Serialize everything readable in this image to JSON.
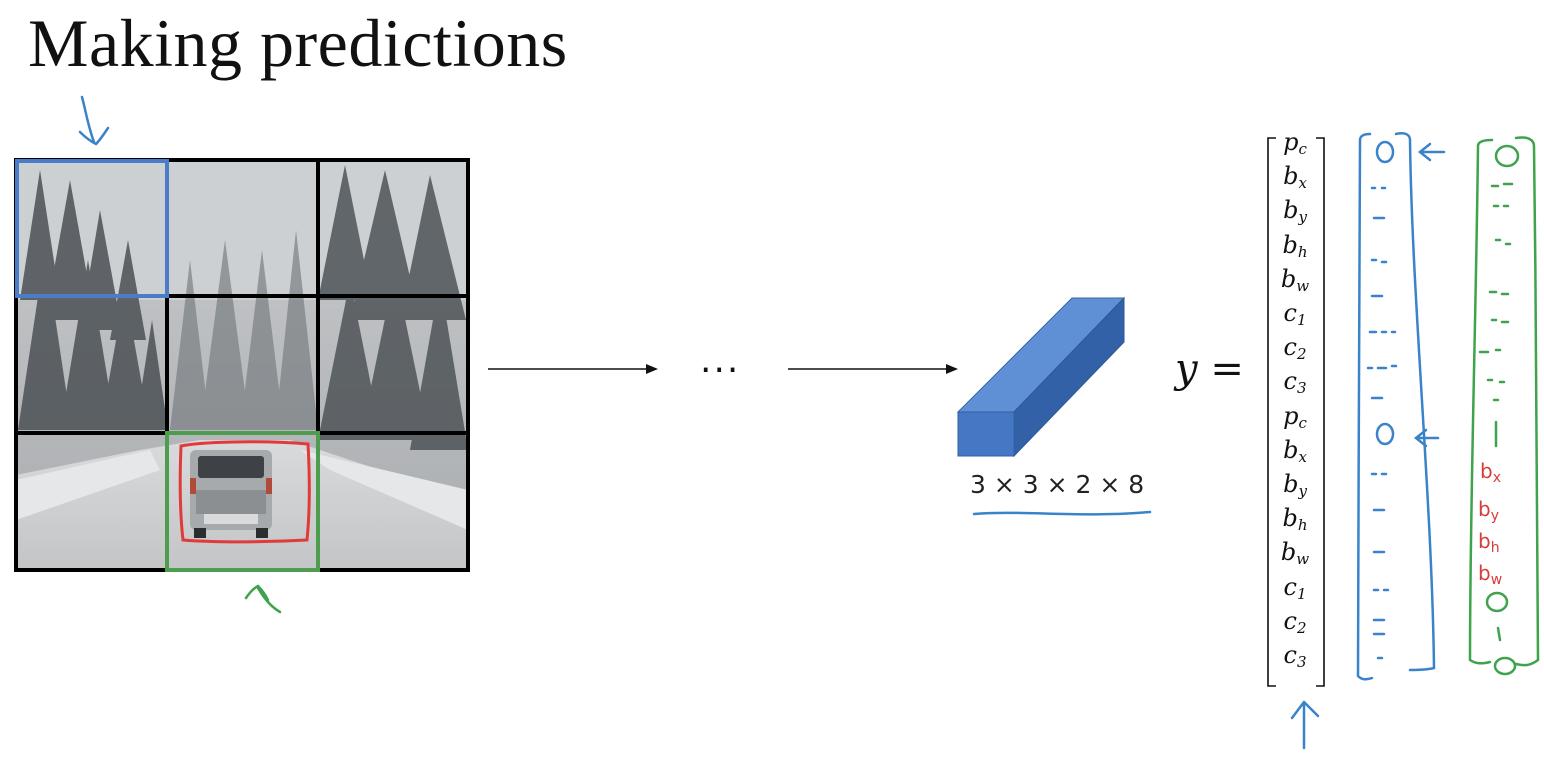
{
  "title": "Making predictions",
  "pipeline": {
    "ellipsis": "...",
    "output_volume_label": "3 × 3 × 2 × 8"
  },
  "output_vector": {
    "lhs": "y =",
    "components": [
      {
        "base": "p",
        "sub": "c"
      },
      {
        "base": "b",
        "sub": "x"
      },
      {
        "base": "b",
        "sub": "y"
      },
      {
        "base": "b",
        "sub": "h"
      },
      {
        "base": "b",
        "sub": "w"
      },
      {
        "base": "c",
        "sub": "1"
      },
      {
        "base": "c",
        "sub": "2"
      },
      {
        "base": "c",
        "sub": "3"
      },
      {
        "base": "p",
        "sub": "c"
      },
      {
        "base": "b",
        "sub": "x"
      },
      {
        "base": "b",
        "sub": "y"
      },
      {
        "base": "b",
        "sub": "h"
      },
      {
        "base": "b",
        "sub": "w"
      },
      {
        "base": "c",
        "sub": "1"
      },
      {
        "base": "c",
        "sub": "2"
      },
      {
        "base": "c",
        "sub": "3"
      }
    ]
  },
  "green_cell_vector": {
    "annotations": [
      "0",
      "1",
      "bx",
      "by",
      "bh",
      "bw",
      "0",
      "1",
      "0"
    ]
  },
  "colors": {
    "blue_annotation": "#3b83c9",
    "green_annotation": "#3fa34d",
    "red_annotation": "#d93a3a",
    "volume_front": "#4478c4",
    "volume_top": "#5f8fd4",
    "volume_side": "#3361a8"
  }
}
